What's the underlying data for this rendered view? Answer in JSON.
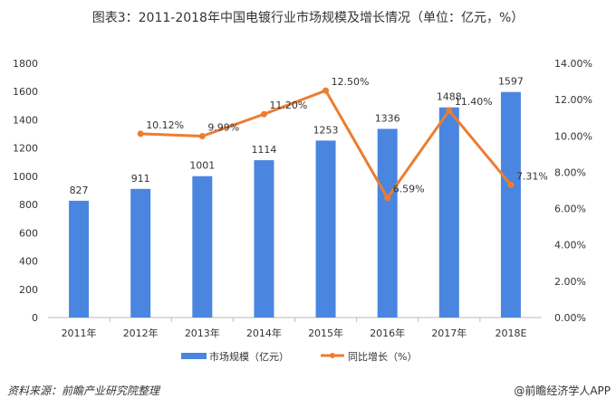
{
  "chart_data": {
    "type": "bar+line",
    "title": "图表3：2011-2018年中国电镀行业市场规模及增长情况（单位：亿元，%）",
    "categories": [
      "2011年",
      "2012年",
      "2013年",
      "2014年",
      "2015年",
      "2016年",
      "2017年",
      "2018E"
    ],
    "series": [
      {
        "name": "市场规模（亿元）",
        "type": "bar",
        "axis": "left",
        "color": "#4A86E0",
        "values": [
          827,
          911,
          1001,
          1114,
          1253,
          1336,
          1488,
          1597
        ],
        "labels": [
          "827",
          "911",
          "1001",
          "1114",
          "1253",
          "1336",
          "1488",
          "1597"
        ]
      },
      {
        "name": "同比增长（%）",
        "type": "line",
        "axis": "right",
        "color": "#ED7D31",
        "values": [
          null,
          10.12,
          9.99,
          11.2,
          12.5,
          6.59,
          11.4,
          7.31
        ],
        "labels": [
          "",
          "10.12%",
          "9.99%",
          "11.20%",
          "12.50%",
          "6.59%",
          "11.40%",
          "7.31%"
        ]
      }
    ],
    "ylim_left": [
      0,
      1800
    ],
    "yticks_left": [
      "0",
      "200",
      "400",
      "600",
      "800",
      "1000",
      "1200",
      "1400",
      "1600",
      "1800"
    ],
    "ylim_right": [
      0,
      14
    ],
    "yticks_right": [
      "0.00%",
      "2.00%",
      "4.00%",
      "6.00%",
      "8.00%",
      "10.00%",
      "12.00%",
      "14.00%"
    ],
    "grid": false,
    "legend": "bottom"
  },
  "footer": {
    "source": "资料来源：前瞻产业研究院整理",
    "brand": "@前瞻经济学人APP"
  }
}
